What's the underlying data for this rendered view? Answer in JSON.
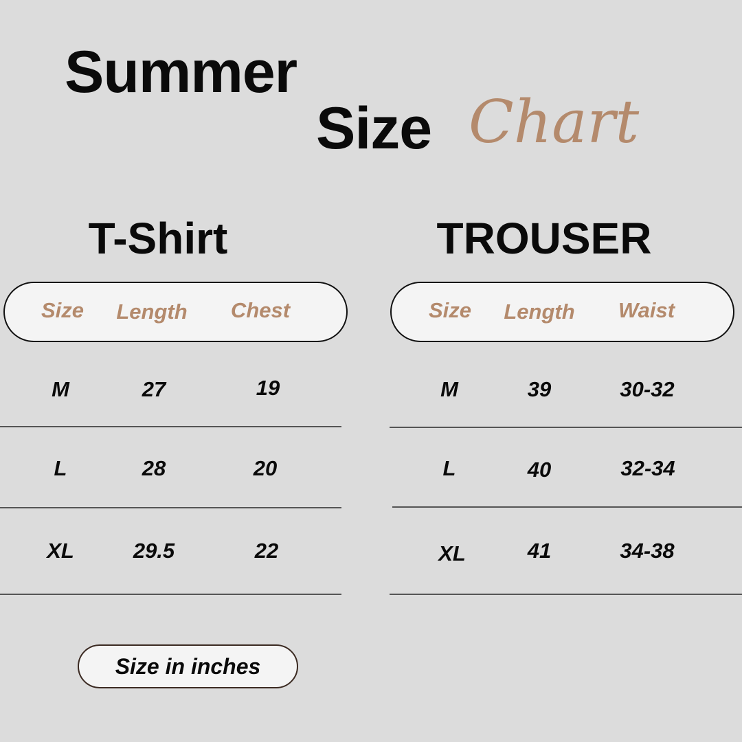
{
  "title": {
    "line1": "Summer",
    "line2": "Size",
    "script": "Chart"
  },
  "accent_color": "#b48a6c",
  "tshirt": {
    "heading": "T-Shirt",
    "columns": [
      "Size",
      "Length",
      "Chest"
    ],
    "rows": [
      [
        "M",
        "27",
        "19"
      ],
      [
        "L",
        "28",
        "20"
      ],
      [
        "XL",
        "29.5",
        "22"
      ]
    ]
  },
  "trouser": {
    "heading": "TROUSER",
    "columns": [
      "Size",
      "Length",
      "Waist"
    ],
    "rows": [
      [
        "M",
        "39",
        "30-32"
      ],
      [
        "L",
        "40",
        "32-34"
      ],
      [
        "XL",
        "41",
        "34-38"
      ]
    ]
  },
  "note": "Size in inches"
}
